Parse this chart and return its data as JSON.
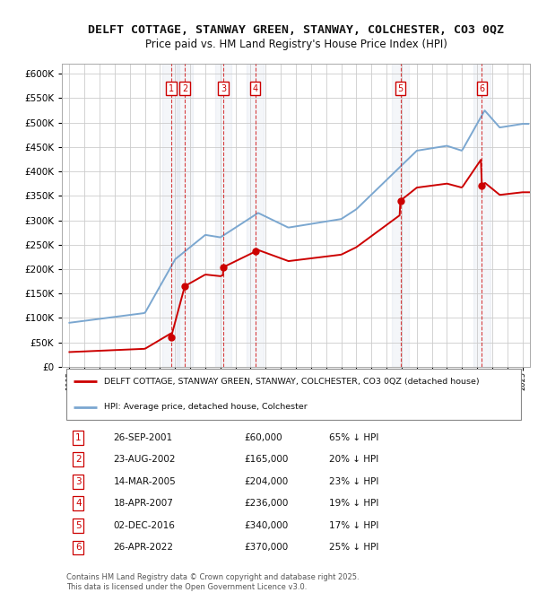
{
  "title": "DELFT COTTAGE, STANWAY GREEN, STANWAY, COLCHESTER, CO3 0QZ",
  "subtitle": "Price paid vs. HM Land Registry's House Price Index (HPI)",
  "title_fontsize": 9.5,
  "subtitle_fontsize": 8.5,
  "bg_color": "#ffffff",
  "plot_bg_color": "#ffffff",
  "grid_color": "#cccccc",
  "ylim": [
    0,
    620000
  ],
  "yticks": [
    0,
    50000,
    100000,
    150000,
    200000,
    250000,
    300000,
    350000,
    400000,
    450000,
    500000,
    550000,
    600000
  ],
  "xlim_start": 1994.5,
  "xlim_end": 2025.5,
  "hpi_color": "#7ba7d0",
  "price_color": "#cc0000",
  "sales": [
    {
      "num": 1,
      "year": 2001.73,
      "price": 60000
    },
    {
      "num": 2,
      "year": 2002.64,
      "price": 165000
    },
    {
      "num": 3,
      "year": 2005.2,
      "price": 204000
    },
    {
      "num": 4,
      "year": 2007.3,
      "price": 236000
    },
    {
      "num": 5,
      "year": 2016.92,
      "price": 340000
    },
    {
      "num": 6,
      "year": 2022.32,
      "price": 370000
    }
  ],
  "legend_label_red": "DELFT COTTAGE, STANWAY GREEN, STANWAY, COLCHESTER, CO3 0QZ (detached house)",
  "legend_label_blue": "HPI: Average price, detached house, Colchester",
  "footer": "Contains HM Land Registry data © Crown copyright and database right 2025.\nThis data is licensed under the Open Government Licence v3.0.",
  "table_rows": [
    [
      "1",
      "26-SEP-2001",
      "£60,000",
      "65% ↓ HPI"
    ],
    [
      "2",
      "23-AUG-2002",
      "£165,000",
      "20% ↓ HPI"
    ],
    [
      "3",
      "14-MAR-2005",
      "£204,000",
      "23% ↓ HPI"
    ],
    [
      "4",
      "18-APR-2007",
      "£236,000",
      "19% ↓ HPI"
    ],
    [
      "5",
      "02-DEC-2016",
      "£340,000",
      "17% ↓ HPI"
    ],
    [
      "6",
      "26-APR-2022",
      "£370,000",
      "25% ↓ HPI"
    ]
  ]
}
